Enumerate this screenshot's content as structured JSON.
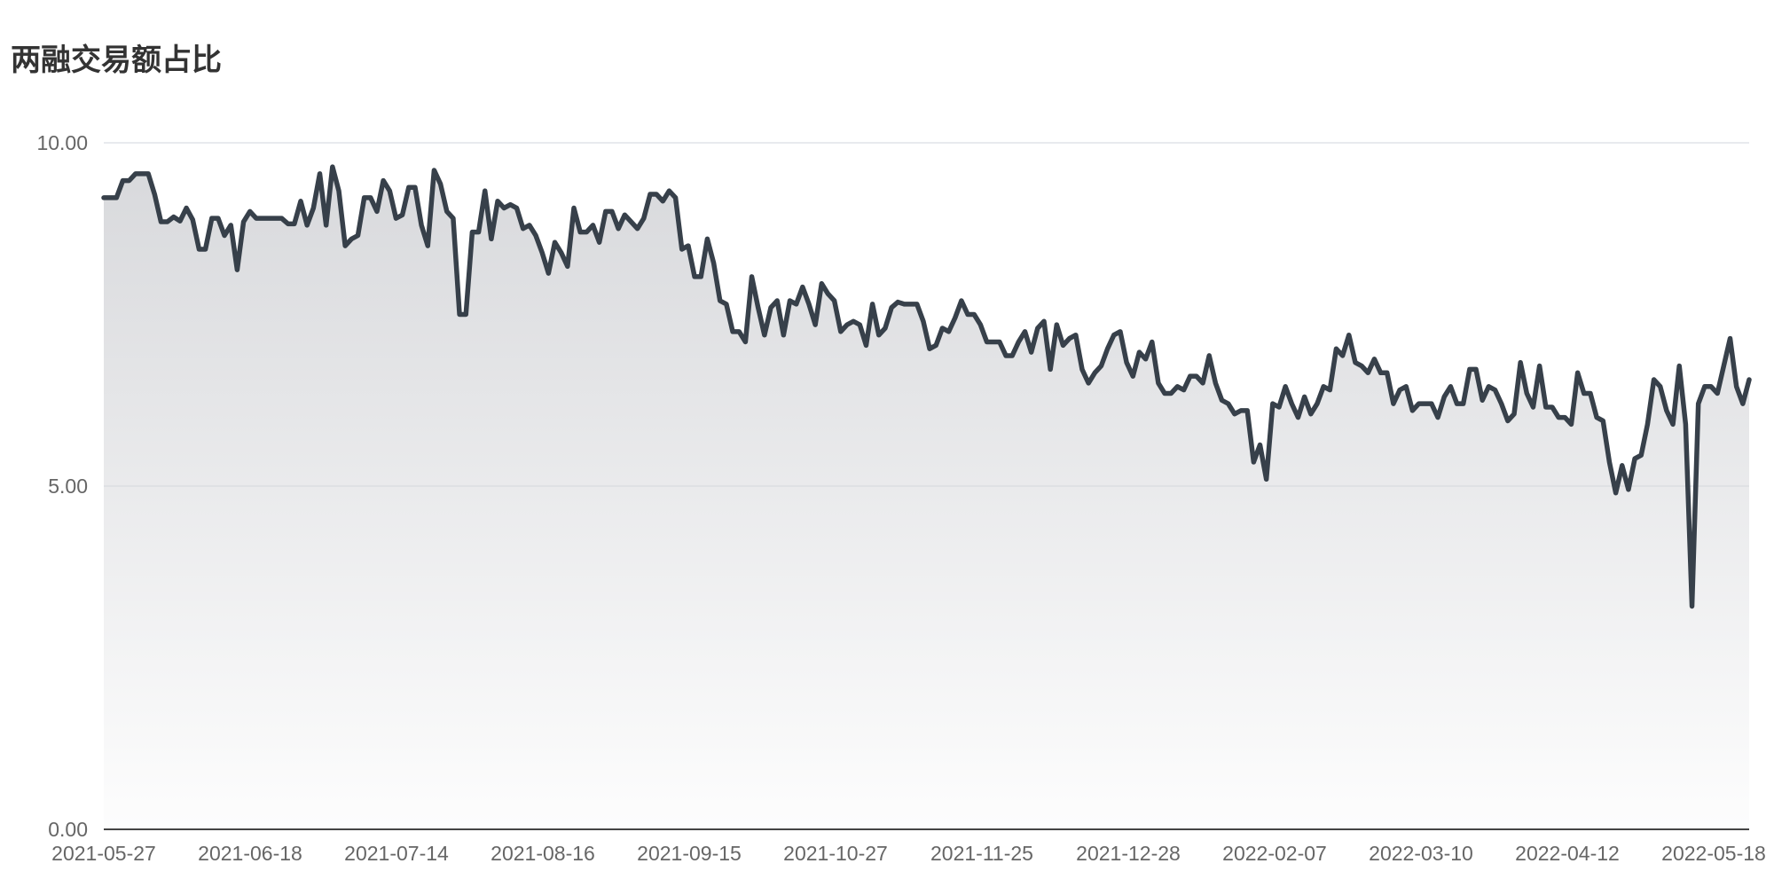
{
  "chart_data": {
    "type": "area",
    "title": "两融交易额占比",
    "xlabel": "",
    "ylabel": "",
    "ylim": [
      0,
      10
    ],
    "y_ticks": [
      "0.00",
      "5.00",
      "10.00"
    ],
    "x_tick_labels": [
      "2021-05-27",
      "2021-06-18",
      "2021-07-14",
      "2021-08-16",
      "2021-09-15",
      "2021-10-27",
      "2021-11-25",
      "2021-12-28",
      "2022-02-07",
      "2022-03-10",
      "2022-04-12",
      "2022-05-18"
    ],
    "grid": true,
    "legend": "none",
    "line_color": "#37404a",
    "area_color": "#d8d9dc",
    "series": [
      {
        "values": [
          9.2,
          9.2,
          9.2,
          9.45,
          9.45,
          9.55,
          9.55,
          9.55,
          9.25,
          8.85,
          8.85,
          8.92,
          8.86,
          9.05,
          8.88,
          8.45,
          8.45,
          8.9,
          8.9,
          8.65,
          8.8,
          8.15,
          8.85,
          9.0,
          8.9,
          8.9,
          8.9,
          8.9,
          8.9,
          8.82,
          8.82,
          9.15,
          8.8,
          9.05,
          9.55,
          8.8,
          9.65,
          9.3,
          8.5,
          8.6,
          8.65,
          9.2,
          9.2,
          9.0,
          9.45,
          9.3,
          8.9,
          8.95,
          9.35,
          9.35,
          8.8,
          8.5,
          9.6,
          9.4,
          9.0,
          8.9,
          7.5,
          7.5,
          8.7,
          8.7,
          9.3,
          8.6,
          9.15,
          9.05,
          9.1,
          9.05,
          8.75,
          8.8,
          8.65,
          8.4,
          8.1,
          8.55,
          8.4,
          8.2,
          9.05,
          8.7,
          8.7,
          8.8,
          8.55,
          9.0,
          9.0,
          8.75,
          8.95,
          8.85,
          8.75,
          8.9,
          9.25,
          9.25,
          9.15,
          9.3,
          9.2,
          8.45,
          8.5,
          8.05,
          8.05,
          8.6,
          8.25,
          7.7,
          7.65,
          7.25,
          7.25,
          7.1,
          8.05,
          7.6,
          7.2,
          7.6,
          7.7,
          7.2,
          7.7,
          7.65,
          7.9,
          7.65,
          7.35,
          7.95,
          7.8,
          7.7,
          7.25,
          7.35,
          7.4,
          7.35,
          7.05,
          7.65,
          7.2,
          7.3,
          7.6,
          7.68,
          7.65,
          7.65,
          7.65,
          7.4,
          7.0,
          7.05,
          7.3,
          7.25,
          7.45,
          7.7,
          7.5,
          7.5,
          7.35,
          7.1,
          7.1,
          7.1,
          6.9,
          6.9,
          7.1,
          7.25,
          6.95,
          7.3,
          7.4,
          6.7,
          7.35,
          7.05,
          7.15,
          7.2,
          6.7,
          6.5,
          6.65,
          6.75,
          7.0,
          7.2,
          7.25,
          6.8,
          6.6,
          6.95,
          6.85,
          7.1,
          6.5,
          6.35,
          6.35,
          6.45,
          6.4,
          6.6,
          6.6,
          6.5,
          6.9,
          6.5,
          6.25,
          6.2,
          6.05,
          6.1,
          6.1,
          5.35,
          5.6,
          5.1,
          6.2,
          6.15,
          6.45,
          6.2,
          6.0,
          6.3,
          6.05,
          6.2,
          6.45,
          6.4,
          7.0,
          6.9,
          7.2,
          6.8,
          6.75,
          6.65,
          6.85,
          6.65,
          6.65,
          6.2,
          6.4,
          6.45,
          6.1,
          6.2,
          6.2,
          6.2,
          6.0,
          6.3,
          6.45,
          6.2,
          6.2,
          6.7,
          6.7,
          6.25,
          6.45,
          6.4,
          6.2,
          5.95,
          6.05,
          6.8,
          6.35,
          6.15,
          6.75,
          6.15,
          6.15,
          6.0,
          6.0,
          5.9,
          6.65,
          6.35,
          6.35,
          6.0,
          5.95,
          5.35,
          4.9,
          5.3,
          4.95,
          5.4,
          5.45,
          5.9,
          6.55,
          6.45,
          6.1,
          5.9,
          6.75,
          5.9,
          3.25,
          6.2,
          6.45,
          6.45,
          6.35,
          6.75,
          7.15,
          6.45,
          6.2,
          6.55
        ]
      }
    ]
  }
}
